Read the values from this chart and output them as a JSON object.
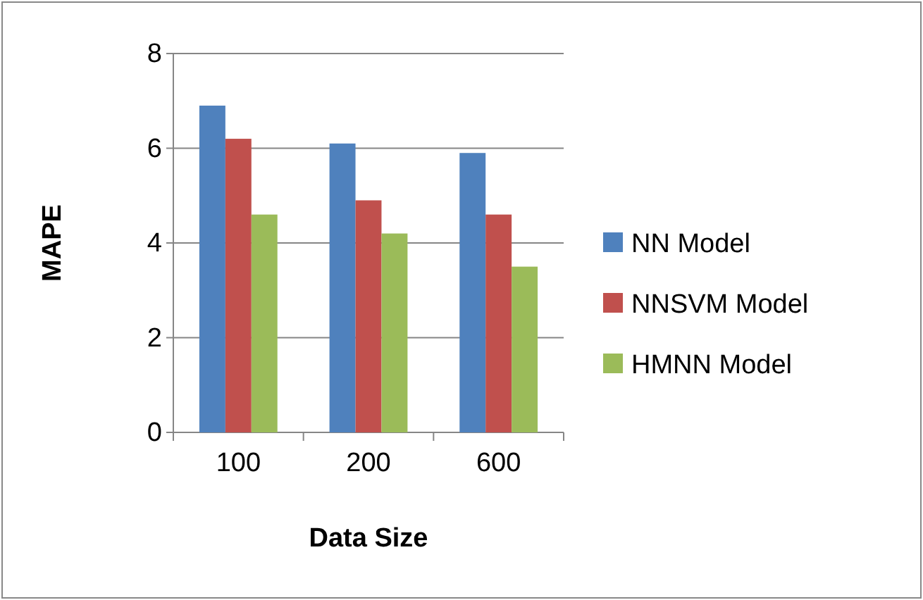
{
  "chart_data": {
    "type": "bar",
    "xlabel": "Data Size",
    "ylabel": "MAPE",
    "categories": [
      "100",
      "200",
      "600"
    ],
    "series": [
      {
        "name": "NN Model",
        "color": "#4f81bd",
        "values": [
          6.9,
          6.1,
          5.9
        ]
      },
      {
        "name": "NNSVM Model",
        "color": "#c0504d",
        "values": [
          6.2,
          4.9,
          4.6
        ]
      },
      {
        "name": "HMNN Model",
        "color": "#9bbb59",
        "values": [
          4.6,
          4.2,
          3.5
        ]
      }
    ],
    "ylim": [
      0,
      8
    ],
    "yticks": [
      0,
      2,
      4,
      6,
      8
    ],
    "grid": "y",
    "legend": "right"
  }
}
